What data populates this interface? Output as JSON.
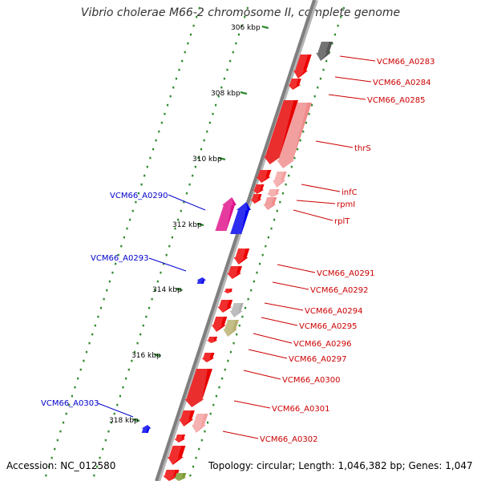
{
  "title": "Vibrio cholerae M66-2 chromosome II, complete genome",
  "footer": {
    "accession": "Accession: NC_012580",
    "summary": "Topology: circular; Length: 1,046,382 bp; Genes: 1,047"
  },
  "colors": {
    "forward_gene": "#ff0000",
    "reverse_gene": "#0000ff",
    "forward_label": "#cc0000",
    "reverse_label": "#0000cc",
    "backbone": "#7f7f7f",
    "tick": "#2e8b2e"
  },
  "scale_ticks": [
    "306 kbp",
    "308 kbp",
    "310 kbp",
    "312 kbp",
    "314 kbp",
    "316 kbp",
    "318 kbp"
  ],
  "gene_labels_forward": [
    "VCM66_A0283",
    "VCM66_A0284",
    "VCM66_A0285",
    "thrS",
    "infC",
    "rpmI",
    "rplT",
    "VCM66_A0291",
    "VCM66_A0292",
    "VCM66_A0294",
    "VCM66_A0295",
    "VCM66_A0296",
    "VCM66_A0297",
    "VCM66_A0300",
    "VCM66_A0301",
    "VCM66_A0302"
  ],
  "gene_labels_reverse": [
    "VCM66_A0290",
    "VCM66_A0293",
    "VCM66_A0303"
  ]
}
